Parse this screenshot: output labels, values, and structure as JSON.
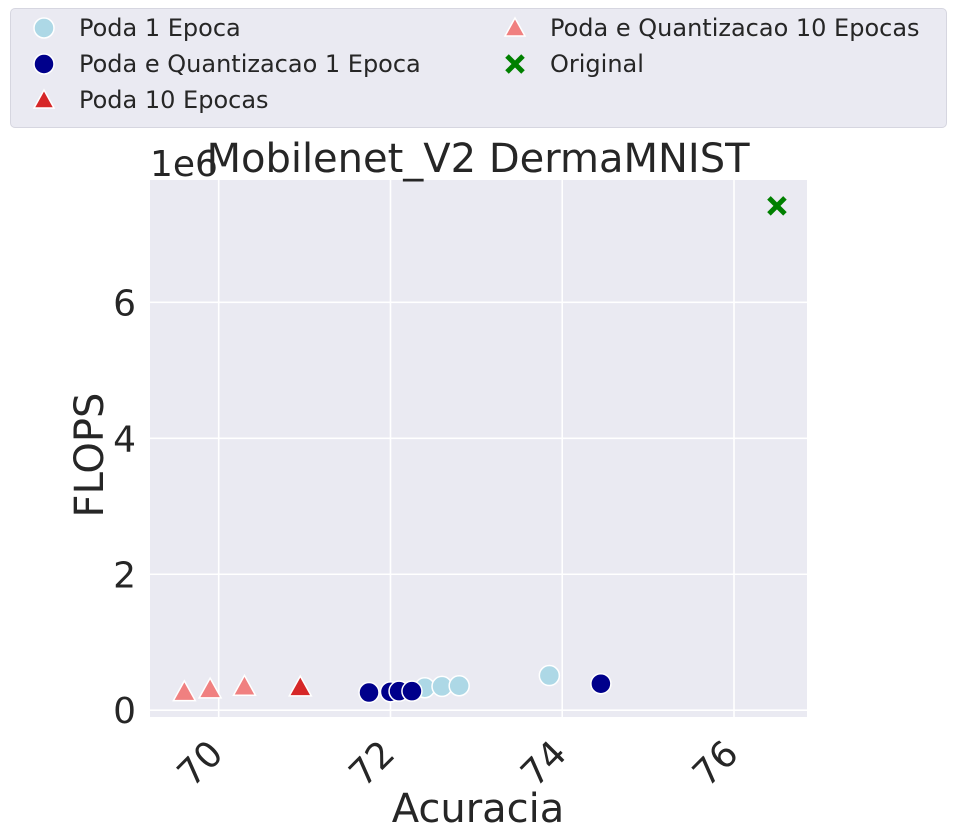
{
  "chart_data": {
    "type": "scatter",
    "title": "Mobilenet_V2 DermaMNIST",
    "xlabel": "Acuracia",
    "ylabel": "FLOPS",
    "y_offset_label": "1e6",
    "xlim": [
      69.2,
      76.85
    ],
    "ylim": [
      -0.1,
      7.8
    ],
    "y_scale_factor": 1000000,
    "xticks": [
      70,
      72,
      74,
      76
    ],
    "yticks": [
      0,
      2,
      4,
      6
    ],
    "grid": true,
    "legend_position": "top",
    "series": [
      {
        "name": "Poda 1 Epoca",
        "marker": "circle",
        "color": "#add8e6",
        "points": [
          [
            72.4,
            0.33
          ],
          [
            72.6,
            0.35
          ],
          [
            72.8,
            0.36
          ],
          [
            73.85,
            0.51
          ]
        ]
      },
      {
        "name": "Poda e Quantizacao 1 Epoca",
        "marker": "circle",
        "color": "#00008b",
        "points": [
          [
            71.75,
            0.26
          ],
          [
            72.0,
            0.27
          ],
          [
            72.1,
            0.28
          ],
          [
            72.25,
            0.28
          ],
          [
            74.45,
            0.39
          ]
        ]
      },
      {
        "name": "Poda 10 Epocas",
        "marker": "triangle",
        "color": "#d62728",
        "points": [
          [
            70.95,
            0.34
          ]
        ]
      },
      {
        "name": "Poda e Quantizacao 10 Epocas",
        "marker": "triangle",
        "color": "#f08080",
        "points": [
          [
            69.6,
            0.27
          ],
          [
            69.9,
            0.31
          ],
          [
            70.3,
            0.35
          ]
        ]
      },
      {
        "name": "Original",
        "marker": "x",
        "color": "#008000",
        "points": [
          [
            76.5,
            7.42
          ]
        ]
      }
    ]
  }
}
